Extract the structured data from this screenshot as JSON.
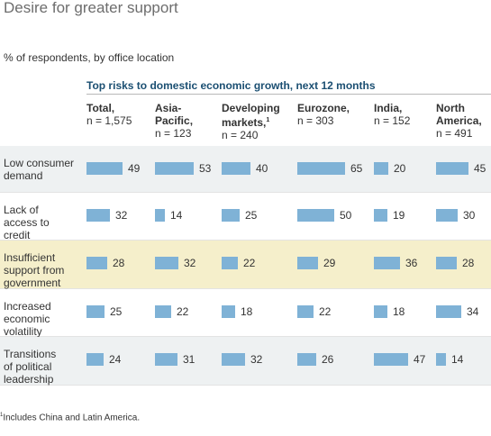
{
  "title": "Desire for greater support",
  "subtitle": "% of respondents, by office location",
  "footnote": {
    "marker": "1",
    "text": "Includes China and Latin America."
  },
  "colors": {
    "bar": "#7fb2d6",
    "highlight_row": "#f5efcb",
    "alt_row": "#eef1f2",
    "heading": "#1b4f72"
  },
  "chart_data": {
    "type": "bar",
    "title": "Top risks to domestic economic growth, next 12 months",
    "columns": [
      {
        "name": "Total,",
        "n": "n = 1,575",
        "footnote": ""
      },
      {
        "name": "Asia-\nPacific,",
        "n": "n = 123",
        "footnote": ""
      },
      {
        "name": "Developing\nmarkets,",
        "n": "n = 240",
        "footnote": "1"
      },
      {
        "name": "Eurozone,",
        "n": "n = 303",
        "footnote": ""
      },
      {
        "name": "India,",
        "n": "n = 152",
        "footnote": ""
      },
      {
        "name": "North\nAmerica,",
        "n": "n = 491",
        "footnote": ""
      }
    ],
    "rows": [
      {
        "label": "Low consumer\ndemand",
        "values": [
          49,
          53,
          40,
          65,
          20,
          45
        ],
        "highlight": false
      },
      {
        "label": "Lack of\naccess to\ncredit",
        "values": [
          32,
          14,
          25,
          50,
          19,
          30
        ],
        "highlight": false
      },
      {
        "label": "Insufficient\nsupport from\ngovernment",
        "values": [
          28,
          32,
          22,
          29,
          36,
          28
        ],
        "highlight": true
      },
      {
        "label": "Increased\neconomic\nvolatility",
        "values": [
          25,
          22,
          18,
          22,
          18,
          34
        ],
        "highlight": false
      },
      {
        "label": "Transitions\nof political\nleadership",
        "values": [
          24,
          31,
          32,
          26,
          47,
          14
        ],
        "highlight": false
      }
    ]
  }
}
